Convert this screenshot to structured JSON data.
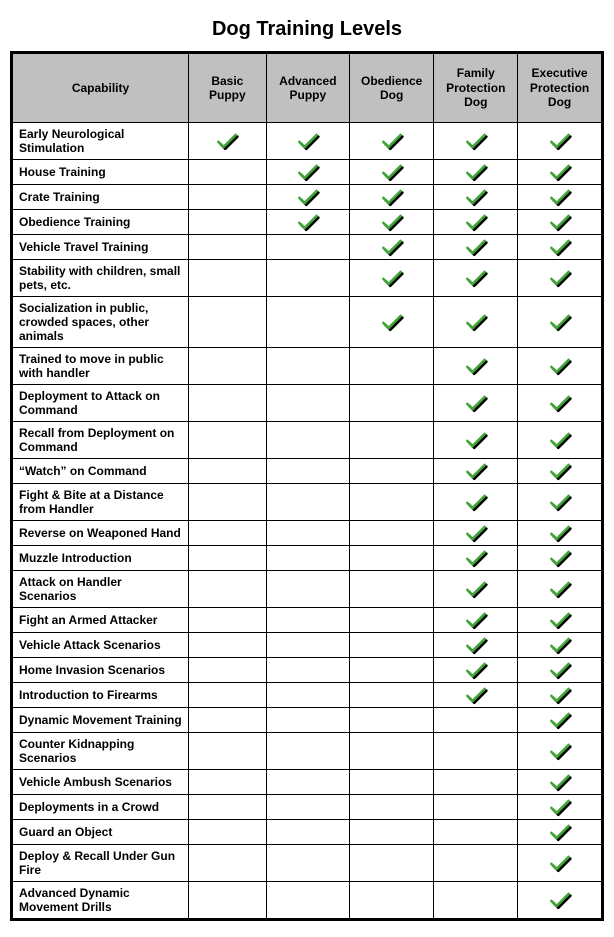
{
  "title": "Dog Training Levels",
  "check_style": {
    "stroke": "#3fa535",
    "shadow": "#000000",
    "stroke_width": 3
  },
  "columns": [
    "Capability",
    "Basic Puppy",
    "Advanced Puppy",
    "Obedience Dog",
    "Family Protection Dog",
    "Executive Protection Dog"
  ],
  "rows": [
    {
      "label": "Early Neurological Stimulation",
      "checks": [
        true,
        true,
        true,
        true,
        true
      ]
    },
    {
      "label": "House Training",
      "checks": [
        false,
        true,
        true,
        true,
        true
      ]
    },
    {
      "label": "Crate Training",
      "checks": [
        false,
        true,
        true,
        true,
        true
      ]
    },
    {
      "label": "Obedience Training",
      "checks": [
        false,
        true,
        true,
        true,
        true
      ]
    },
    {
      "label": "Vehicle Travel Training",
      "checks": [
        false,
        false,
        true,
        true,
        true
      ]
    },
    {
      "label": "Stability with children, small pets, etc.",
      "checks": [
        false,
        false,
        true,
        true,
        true
      ]
    },
    {
      "label": "Socialization in public, crowded spaces, other animals",
      "checks": [
        false,
        false,
        true,
        true,
        true
      ]
    },
    {
      "label": "Trained to move in public with handler",
      "checks": [
        false,
        false,
        false,
        true,
        true
      ]
    },
    {
      "label": "Deployment to Attack on Command",
      "checks": [
        false,
        false,
        false,
        true,
        true
      ]
    },
    {
      "label": "Recall from Deployment on Command",
      "checks": [
        false,
        false,
        false,
        true,
        true
      ]
    },
    {
      "label": "“Watch” on Command",
      "checks": [
        false,
        false,
        false,
        true,
        true
      ]
    },
    {
      "label": "Fight & Bite at a Distance from Handler",
      "checks": [
        false,
        false,
        false,
        true,
        true
      ]
    },
    {
      "label": "Reverse on Weaponed Hand",
      "checks": [
        false,
        false,
        false,
        true,
        true
      ]
    },
    {
      "label": "Muzzle Introduction",
      "checks": [
        false,
        false,
        false,
        true,
        true
      ]
    },
    {
      "label": "Attack on Handler Scenarios",
      "checks": [
        false,
        false,
        false,
        true,
        true
      ]
    },
    {
      "label": "Fight an Armed Attacker",
      "checks": [
        false,
        false,
        false,
        true,
        true
      ]
    },
    {
      "label": "Vehicle Attack Scenarios",
      "checks": [
        false,
        false,
        false,
        true,
        true
      ]
    },
    {
      "label": "Home Invasion Scenarios",
      "checks": [
        false,
        false,
        false,
        true,
        true
      ]
    },
    {
      "label": "Introduction to Firearms",
      "checks": [
        false,
        false,
        false,
        true,
        true
      ]
    },
    {
      "label": "Dynamic Movement Training",
      "checks": [
        false,
        false,
        false,
        false,
        true
      ]
    },
    {
      "label": "Counter Kidnapping Scenarios",
      "checks": [
        false,
        false,
        false,
        false,
        true
      ]
    },
    {
      "label": "Vehicle Ambush Scenarios",
      "checks": [
        false,
        false,
        false,
        false,
        true
      ]
    },
    {
      "label": "Deployments in a Crowd",
      "checks": [
        false,
        false,
        false,
        false,
        true
      ]
    },
    {
      "label": "Guard an Object",
      "checks": [
        false,
        false,
        false,
        false,
        true
      ]
    },
    {
      "label": "Deploy & Recall Under Gun Fire",
      "checks": [
        false,
        false,
        false,
        false,
        true
      ]
    },
    {
      "label": "Advanced Dynamic Movement Drills",
      "checks": [
        false,
        false,
        false,
        false,
        true
      ]
    }
  ]
}
